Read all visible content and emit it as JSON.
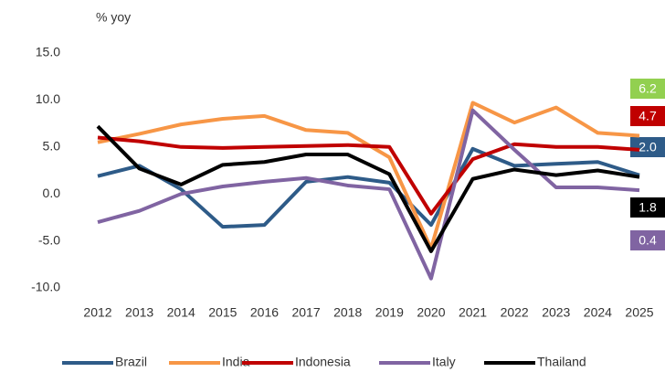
{
  "chart_data": {
    "type": "line",
    "title": "% yoy",
    "categories": [
      "2012",
      "2013",
      "2014",
      "2015",
      "2016",
      "2017",
      "2018",
      "2019",
      "2020",
      "2021",
      "2022",
      "2023",
      "2024",
      "2025"
    ],
    "series": [
      {
        "name": "Brazil",
        "color": "#2e5b88",
        "label_color": "#2e5b88",
        "end_label": "2.0",
        "values": [
          1.9,
          3.0,
          0.5,
          -3.5,
          -3.3,
          1.3,
          1.8,
          1.2,
          -3.3,
          4.8,
          3.0,
          3.2,
          3.4,
          2.0
        ]
      },
      {
        "name": "India",
        "color": "#f79646",
        "label_color": "#92d050",
        "end_label": "6.2",
        "values": [
          5.5,
          6.4,
          7.4,
          8.0,
          8.3,
          6.8,
          6.5,
          3.9,
          -5.8,
          9.7,
          7.6,
          9.2,
          6.5,
          6.2
        ]
      },
      {
        "name": "Indonesia",
        "color": "#c00000",
        "label_color": "#c00000",
        "end_label": "4.7",
        "values": [
          6.0,
          5.6,
          5.0,
          4.9,
          5.0,
          5.1,
          5.2,
          5.0,
          -2.1,
          3.7,
          5.3,
          5.0,
          5.0,
          4.7
        ]
      },
      {
        "name": "Italy",
        "color": "#8064a2",
        "label_color": "#8064a2",
        "end_label": "0.4",
        "values": [
          -3.0,
          -1.8,
          0.0,
          0.8,
          1.3,
          1.7,
          0.9,
          0.5,
          -9.0,
          8.9,
          4.7,
          0.7,
          0.7,
          0.4
        ]
      },
      {
        "name": "Thailand",
        "color": "#000000",
        "label_color": "#000000",
        "end_label": "1.8",
        "values": [
          7.2,
          2.7,
          1.0,
          3.1,
          3.4,
          4.2,
          4.2,
          2.1,
          -6.1,
          1.6,
          2.6,
          2.0,
          2.5,
          1.8
        ]
      }
    ],
    "ylim": [
      -10,
      15
    ],
    "yticks": [
      {
        "value": -10,
        "label": "-10.0"
      },
      {
        "value": -5,
        "label": "-5.0"
      },
      {
        "value": 0,
        "label": "0.0"
      },
      {
        "value": 5,
        "label": "5.0"
      },
      {
        "value": 10,
        "label": "10.0"
      },
      {
        "value": 15,
        "label": "15.0"
      }
    ],
    "grid": false,
    "legend": "bottom"
  }
}
